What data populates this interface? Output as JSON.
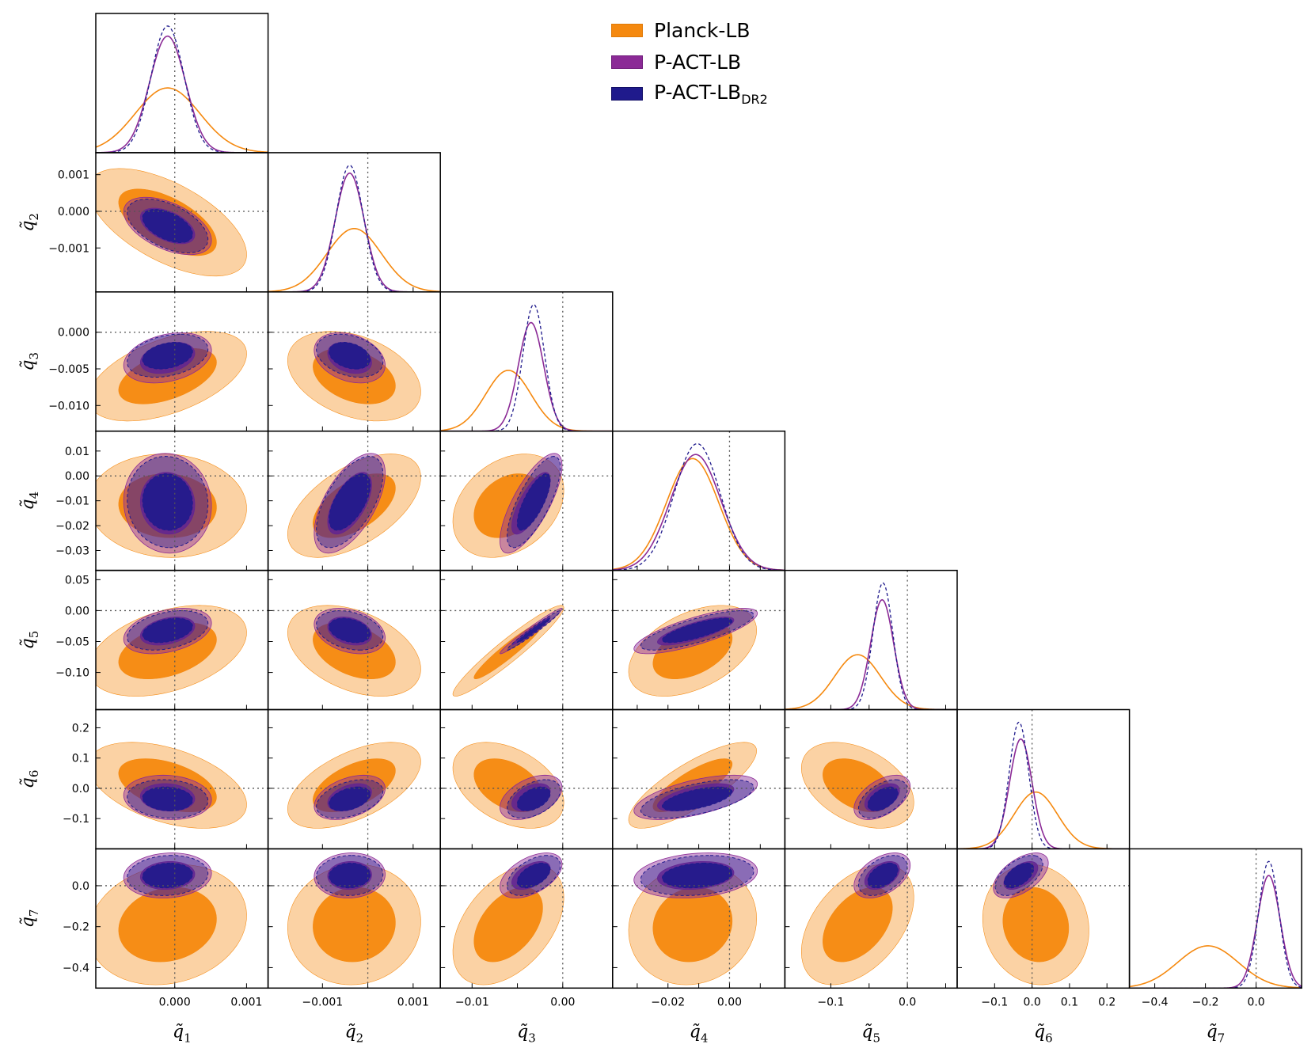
{
  "chart_data": {
    "type": "triangle-corner-plot",
    "parameters": [
      {
        "name": "q̃",
        "sub": "1",
        "range": [
          -0.0011,
          0.0013
        ],
        "ticks": [
          0.0,
          0.001
        ],
        "tick_labels": [
          "0.000",
          "0.001"
        ],
        "fiducial": 0.0
      },
      {
        "name": "q̃",
        "sub": "2",
        "range": [
          -0.0022,
          0.0016
        ],
        "ticks": [
          -0.001,
          0.0,
          0.001
        ],
        "tick_labels": [
          "−0.001",
          "0.000",
          "0.001"
        ],
        "fiducial": 0.0
      },
      {
        "name": "q̃",
        "sub": "3",
        "range": [
          -0.0135,
          0.0055
        ],
        "ticks": [
          -0.01,
          -0.005,
          0.0
        ],
        "tick_labels": [
          "−0.010",
          "−0.005",
          "0.000"
        ],
        "fiducial": 0.0
      },
      {
        "name": "q̃",
        "sub": "4",
        "range": [
          -0.038,
          0.018
        ],
        "ticks": [
          -0.03,
          -0.02,
          -0.01,
          0.0,
          0.01
        ],
        "tick_labels": [
          "−0.03",
          "−0.02",
          "−0.01",
          "0.00",
          "0.01"
        ],
        "fiducial": 0.0
      },
      {
        "name": "q̃",
        "sub": "5",
        "range": [
          -0.16,
          0.065
        ],
        "ticks": [
          -0.1,
          -0.05,
          0.0,
          0.05
        ],
        "tick_labels": [
          "−0.10",
          "−0.05",
          "0.00",
          "0.05"
        ],
        "fiducial": 0.0
      },
      {
        "name": "q̃",
        "sub": "6",
        "range": [
          -0.2,
          0.26
        ],
        "ticks": [
          -0.1,
          0.0,
          0.1,
          0.2
        ],
        "tick_labels": [
          "−0.1",
          "0.0",
          "0.1",
          "0.2"
        ],
        "fiducial": 0.0
      },
      {
        "name": "q̃",
        "sub": "7",
        "range": [
          -0.5,
          0.18
        ],
        "ticks": [
          -0.4,
          -0.2,
          0.0
        ],
        "tick_labels": [
          "−0.4",
          "−0.2",
          "0.0"
        ],
        "fiducial": 0.0
      }
    ],
    "bottom_ticks": [
      {
        "ticks": [
          0.0,
          0.001
        ],
        "tick_labels": [
          "0.000",
          "0.001"
        ]
      },
      {
        "ticks": [
          -0.001,
          0.001
        ],
        "tick_labels": [
          "−0.001",
          "0.001"
        ]
      },
      {
        "ticks": [
          -0.01,
          0.0
        ],
        "tick_labels": [
          "−0.01",
          "0.00"
        ]
      },
      {
        "ticks": [
          -0.02,
          0.0
        ],
        "tick_labels": [
          "−0.02",
          "0.00"
        ]
      },
      {
        "ticks": [
          -0.1,
          0.0
        ],
        "tick_labels": [
          "−0.1",
          "0.0"
        ]
      },
      {
        "ticks": [
          -0.1,
          0.0,
          0.1,
          0.2
        ],
        "tick_labels": [
          "−0.1",
          "0.0",
          "0.1",
          "0.2"
        ]
      },
      {
        "ticks": [
          -0.4,
          -0.2,
          0.0
        ],
        "tick_labels": [
          "−0.4",
          "−0.2",
          "0.0"
        ]
      }
    ],
    "series": [
      {
        "name": "Planck-LB",
        "label_main": "Planck-LB",
        "label_sub": "",
        "color": "#f5890f",
        "means": [
          -0.0001,
          -0.0003,
          -0.006,
          -0.012,
          -0.065,
          0.01,
          -0.19
        ],
        "sigmas": [
          0.00045,
          0.0006,
          0.0025,
          0.0085,
          0.03,
          0.058,
          0.12
        ],
        "corr": [
          [
            1,
            -0.6,
            0.5,
            -0.05,
            0.4,
            -0.45,
            0.15
          ],
          [
            -0.6,
            1,
            -0.35,
            0.55,
            -0.4,
            0.55,
            0.05
          ],
          [
            0.5,
            -0.35,
            1,
            0.3,
            0.95,
            -0.4,
            0.45
          ],
          [
            -0.05,
            0.55,
            0.3,
            1,
            0.45,
            0.8,
            0.1
          ],
          [
            0.4,
            -0.4,
            0.95,
            0.45,
            1,
            -0.4,
            0.45
          ],
          [
            -0.45,
            0.55,
            -0.4,
            0.8,
            -0.4,
            1,
            -0.1
          ],
          [
            0.15,
            0.05,
            0.45,
            0.1,
            0.45,
            -0.1,
            1
          ]
        ]
      },
      {
        "name": "P-ACT-LB",
        "label_main": "P-ACT-LB",
        "label_sub": "",
        "color": "#8b2a96",
        "means": [
          -0.0001,
          -0.0004,
          -0.0035,
          -0.011,
          -0.033,
          -0.03,
          0.05
        ],
        "sigmas": [
          0.00025,
          0.00032,
          0.0014,
          0.0082,
          0.015,
          0.03,
          0.045
        ],
        "corr": [
          [
            1,
            -0.5,
            0.3,
            -0.05,
            0.35,
            -0.1,
            0.1
          ],
          [
            -0.5,
            1,
            -0.3,
            0.6,
            -0.3,
            0.4,
            0.05
          ],
          [
            0.3,
            -0.3,
            1,
            0.75,
            0.98,
            0.45,
            0.5
          ],
          [
            -0.05,
            0.6,
            0.75,
            1,
            0.78,
            0.6,
            0.2
          ],
          [
            0.35,
            -0.3,
            0.98,
            0.78,
            1,
            0.5,
            0.45
          ],
          [
            -0.1,
            0.4,
            0.45,
            0.6,
            0.5,
            1,
            0.55
          ],
          [
            0.1,
            0.05,
            0.5,
            0.2,
            0.45,
            0.55,
            1
          ]
        ]
      },
      {
        "name": "P-ACT-LB_DR2",
        "label_main": "P-ACT-LB",
        "label_sub": "DR2",
        "color": "#1f1a8c",
        "means": [
          -0.0001,
          -0.0004,
          -0.0032,
          -0.0105,
          -0.032,
          -0.035,
          0.05
        ],
        "sigmas": [
          0.00023,
          0.0003,
          0.0012,
          0.0075,
          0.013,
          0.026,
          0.04
        ],
        "corr": [
          [
            1,
            -0.5,
            0.3,
            -0.05,
            0.35,
            -0.1,
            0.1
          ],
          [
            -0.5,
            1,
            -0.3,
            0.6,
            -0.3,
            0.4,
            0.05
          ],
          [
            0.3,
            -0.3,
            1,
            0.75,
            0.98,
            0.45,
            0.5
          ],
          [
            -0.05,
            0.6,
            0.75,
            1,
            0.78,
            0.6,
            0.2
          ],
          [
            0.35,
            -0.3,
            0.98,
            0.78,
            1,
            0.5,
            0.45
          ],
          [
            -0.1,
            0.4,
            0.45,
            0.6,
            0.5,
            1,
            0.55
          ],
          [
            0.1,
            0.05,
            0.5,
            0.2,
            0.45,
            0.55,
            1
          ]
        ]
      }
    ],
    "contour_levels": [
      "68%",
      "95%"
    ],
    "legend_position": "top-right",
    "grid": false
  }
}
